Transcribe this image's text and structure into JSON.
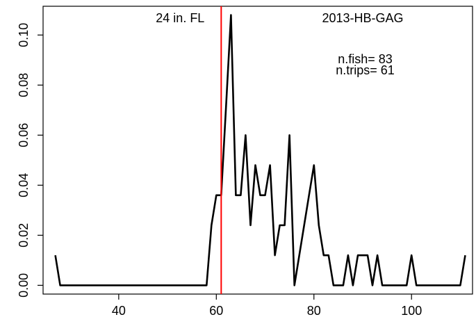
{
  "chart_data": {
    "type": "line",
    "title": "",
    "xlabel": "",
    "ylabel": "",
    "xlim": [
      24.5,
      112.5
    ],
    "ylim": [
      -0.0035,
      0.1115
    ],
    "x_ticks": [
      40,
      60,
      80,
      100
    ],
    "y_ticks": [
      0.0,
      0.02,
      0.04,
      0.06,
      0.08,
      0.1
    ],
    "y_tick_labels": [
      "0.00",
      "0.02",
      "0.04",
      "0.06",
      "0.08",
      "0.10"
    ],
    "grid": false,
    "series": [
      {
        "color": "#000000",
        "x": [
          27,
          28,
          29,
          30,
          31,
          32,
          33,
          34,
          35,
          36,
          37,
          38,
          39,
          40,
          41,
          42,
          43,
          44,
          45,
          46,
          47,
          48,
          49,
          50,
          51,
          52,
          53,
          54,
          55,
          56,
          57,
          58,
          59,
          60,
          61,
          62,
          63,
          64,
          65,
          66,
          67,
          68,
          69,
          70,
          71,
          72,
          73,
          74,
          75,
          76,
          77,
          78,
          79,
          80,
          81,
          82,
          83,
          84,
          85,
          86,
          87,
          88,
          89,
          90,
          91,
          92,
          93,
          94,
          95,
          96,
          97,
          98,
          99,
          100,
          101,
          102,
          103,
          104,
          105,
          106,
          107,
          108,
          109,
          110,
          111
        ],
        "y": [
          0.012,
          0,
          0,
          0,
          0,
          0,
          0,
          0,
          0,
          0,
          0,
          0,
          0,
          0,
          0,
          0,
          0,
          0,
          0,
          0,
          0,
          0,
          0,
          0,
          0,
          0,
          0,
          0,
          0,
          0,
          0,
          0,
          0.024,
          0.036,
          0.036,
          0.072,
          0.108,
          0.036,
          0.036,
          0.06,
          0.024,
          0.048,
          0.036,
          0.036,
          0.048,
          0.012,
          0.024,
          0.024,
          0.06,
          0,
          0.012,
          0.024,
          0.036,
          0.048,
          0.024,
          0.012,
          0.012,
          0,
          0,
          0,
          0.012,
          0,
          0.012,
          0.012,
          0.012,
          0,
          0.012,
          0,
          0,
          0,
          0,
          0,
          0,
          0.012,
          0,
          0,
          0,
          0,
          0,
          0,
          0,
          0,
          0,
          0,
          0.012
        ]
      }
    ],
    "reference_line": {
      "x": 61,
      "color": "#ff0000",
      "label": "24 in. FL"
    },
    "annotations": {
      "dataset": "2013-HB-GAG",
      "n_fish": "n.fish= 83",
      "n_trips": "n.trips= 61"
    }
  }
}
